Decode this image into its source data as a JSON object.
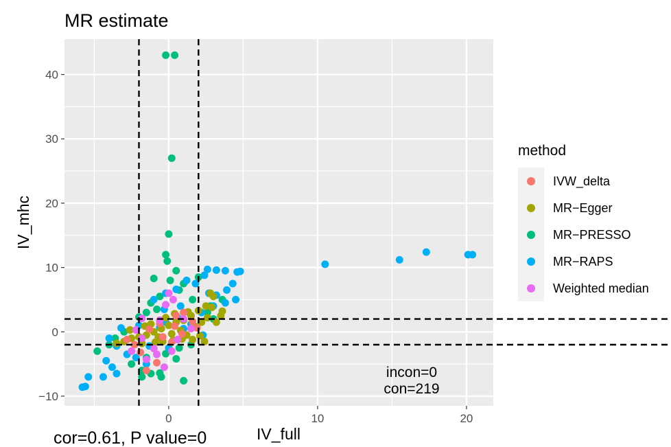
{
  "chart_data": {
    "type": "scatter",
    "title": "MR estimate",
    "xlabel": "IV_full",
    "ylabel": "IV_mhc",
    "xlim": [
      -7,
      21.8
    ],
    "ylim": [
      -11.5,
      45.5
    ],
    "x_ticks": [
      0,
      10,
      20
    ],
    "y_ticks": [
      -10,
      0,
      10,
      20,
      30,
      40
    ],
    "x_tick_labels": [
      "0",
      "10",
      "20"
    ],
    "y_tick_labels": [
      "−10",
      "0",
      "10",
      "20",
      "30",
      "40"
    ],
    "grid": true,
    "reference_lines": {
      "vertical": [
        -2,
        2
      ],
      "horizontal": [
        -2,
        2
      ],
      "style": "dashed"
    },
    "legend": {
      "title": "method",
      "position": "right",
      "entries": [
        {
          "name": "IVW_delta",
          "color": "#F8766D"
        },
        {
          "name": "MR−Egger",
          "color": "#A3A500"
        },
        {
          "name": "MR−PRESSO",
          "color": "#00BF7D"
        },
        {
          "name": "MR−RAPS",
          "color": "#00B0F6"
        },
        {
          "name": "Weighted median",
          "color": "#E76BF3"
        }
      ]
    },
    "series": [
      {
        "name": "MR−PRESSO",
        "color": "#00BF7D",
        "points": [
          [
            -0.2,
            43
          ],
          [
            0.4,
            43
          ],
          [
            0.2,
            27
          ],
          [
            0,
            15.2
          ],
          [
            -0.2,
            12
          ],
          [
            -0.1,
            11
          ],
          [
            0.5,
            9.5
          ],
          [
            -1,
            8.3
          ],
          [
            0.1,
            8
          ],
          [
            1,
            7.5
          ],
          [
            2,
            8.5
          ],
          [
            0.7,
            6.5
          ],
          [
            -0.6,
            5.5
          ],
          [
            1.6,
            5
          ],
          [
            -1.2,
            4.5
          ],
          [
            -1.5,
            3
          ],
          [
            2.6,
            3
          ],
          [
            -2,
            2.3
          ],
          [
            -3,
            0
          ],
          [
            -4,
            -2
          ],
          [
            -3.6,
            -1
          ],
          [
            -4.8,
            -3
          ],
          [
            -1.5,
            -4
          ],
          [
            -2.5,
            -5
          ],
          [
            -1.8,
            -6
          ],
          [
            -0.6,
            -6.4
          ],
          [
            -1.8,
            -7
          ],
          [
            -0.5,
            -7
          ],
          [
            1,
            -7.6
          ],
          [
            -1.2,
            -6.5
          ],
          [
            -0.2,
            -3.4
          ],
          [
            0.7,
            -2.5
          ],
          [
            1.5,
            -2
          ],
          [
            3,
            2
          ],
          [
            3.6,
            5
          ],
          [
            2.8,
            4
          ],
          [
            -0.8,
            3.5
          ],
          [
            0.5,
            -4.2
          ]
        ]
      },
      {
        "name": "MR−RAPS",
        "color": "#00B0F6",
        "points": [
          [
            10.5,
            10.5
          ],
          [
            15.5,
            11.2
          ],
          [
            17.3,
            12.4
          ],
          [
            20.1,
            12
          ],
          [
            20.4,
            12
          ],
          [
            3.8,
            9.5
          ],
          [
            4.6,
            9.3
          ],
          [
            4.8,
            9.4
          ],
          [
            3.2,
            9.6
          ],
          [
            2.6,
            9.7
          ],
          [
            2.4,
            8.8
          ],
          [
            1.2,
            8
          ],
          [
            1.8,
            7.5
          ],
          [
            0.5,
            6.6
          ],
          [
            -0.2,
            6
          ],
          [
            2.7,
            6
          ],
          [
            3.2,
            5.7
          ],
          [
            4.3,
            7.5
          ],
          [
            3.9,
            6.5
          ],
          [
            4.5,
            5
          ],
          [
            3,
            4
          ],
          [
            3.8,
            4.5
          ],
          [
            2.2,
            3
          ],
          [
            -1,
            5
          ],
          [
            -0.3,
            3.5
          ],
          [
            0.8,
            4
          ],
          [
            -2,
            1
          ],
          [
            -3.2,
            0.6
          ],
          [
            -4,
            -1
          ],
          [
            -3.5,
            -2.2
          ],
          [
            -4.2,
            -4.5
          ],
          [
            -3.8,
            -5.5
          ],
          [
            -3.5,
            -6.5
          ],
          [
            -4.4,
            -7
          ],
          [
            -5.6,
            -8.5
          ],
          [
            -5.8,
            -8.6
          ],
          [
            -5.4,
            -7
          ],
          [
            -2.8,
            -3.5
          ],
          [
            -1.5,
            -5
          ],
          [
            -2.2,
            -4
          ],
          [
            -0.2,
            1.5
          ],
          [
            0.6,
            2.2
          ],
          [
            1.5,
            1.2
          ],
          [
            -1.3,
            -2.2
          ],
          [
            0,
            -2.5
          ],
          [
            1,
            0.5
          ],
          [
            2.3,
            -0.5
          ],
          [
            -0.6,
            0.7
          ]
        ]
      },
      {
        "name": "MR−Egger",
        "color": "#A3A500",
        "points": [
          [
            2.8,
            6
          ],
          [
            3,
            5.5
          ],
          [
            2.5,
            4
          ],
          [
            2,
            3.3
          ],
          [
            1.5,
            2.5
          ],
          [
            1,
            1.8
          ],
          [
            0.5,
            1.5
          ],
          [
            0,
            1
          ],
          [
            -0.5,
            0.5
          ],
          [
            -1,
            0
          ],
          [
            -1.5,
            -0.5
          ],
          [
            -2,
            -0.8
          ],
          [
            -2.5,
            -1
          ],
          [
            -3,
            -1.5
          ],
          [
            -3.5,
            -1.8
          ],
          [
            -1.2,
            1.2
          ],
          [
            -0.7,
            -0.8
          ],
          [
            0.2,
            -0.3
          ],
          [
            0.8,
            0.2
          ],
          [
            1.2,
            -0.5
          ],
          [
            1.8,
            0.8
          ],
          [
            2.2,
            1.5
          ],
          [
            2.6,
            2.2
          ],
          [
            3.2,
            1.5
          ],
          [
            3.5,
            2.5
          ],
          [
            0.4,
            2.8
          ],
          [
            -0.2,
            2.2
          ],
          [
            -0.9,
            -1.6
          ],
          [
            -1.8,
            -1.8
          ],
          [
            -2.6,
            0.3
          ],
          [
            1.6,
            -1.2
          ],
          [
            2.1,
            -0.6
          ],
          [
            0.3,
            -1.3
          ],
          [
            -0.4,
            -1.5
          ],
          [
            2.9,
            3.8
          ],
          [
            3.6,
            3.2
          ],
          [
            1.3,
            3.1
          ],
          [
            0.9,
            -1.1
          ],
          [
            -1.6,
            0.9
          ],
          [
            2.4,
            -1.5
          ]
        ]
      },
      {
        "name": "IVW_delta",
        "color": "#F8766D",
        "points": [
          [
            -1.5,
            -6
          ],
          [
            -0.8,
            -4.8
          ],
          [
            0.5,
            2.5
          ],
          [
            1,
            3
          ],
          [
            -0.4,
            -0.8
          ],
          [
            0.2,
            -1.6
          ],
          [
            -1.3,
            0.4
          ],
          [
            1.6,
            1.6
          ],
          [
            -2.3,
            -2
          ],
          [
            0.9,
            -0.3
          ],
          [
            -0.6,
            1.3
          ],
          [
            1.9,
            0.6
          ],
          [
            -2.8,
            -1.2
          ],
          [
            0.4,
            0.9
          ],
          [
            -1.9,
            -3.2
          ]
        ]
      },
      {
        "name": "Weighted median",
        "color": "#E76BF3",
        "points": [
          [
            -1.8,
            2.1
          ],
          [
            -0.2,
            4.2
          ],
          [
            0,
            6
          ],
          [
            0.3,
            5
          ],
          [
            -0.8,
            -3.5
          ],
          [
            -0.3,
            -5.5
          ],
          [
            0.2,
            -3
          ],
          [
            1,
            2
          ],
          [
            -2.5,
            -3
          ],
          [
            -1.8,
            -1
          ],
          [
            1.5,
            0.5
          ],
          [
            -0.6,
            1.8
          ],
          [
            -1,
            -2.6
          ],
          [
            -1.5,
            -4.3
          ],
          [
            0.6,
            -1.2
          ],
          [
            -2.2,
            0.3
          ]
        ]
      }
    ],
    "annotations": [
      "incon=0",
      "con=219"
    ]
  },
  "caption": "cor=0.61, P value=0"
}
